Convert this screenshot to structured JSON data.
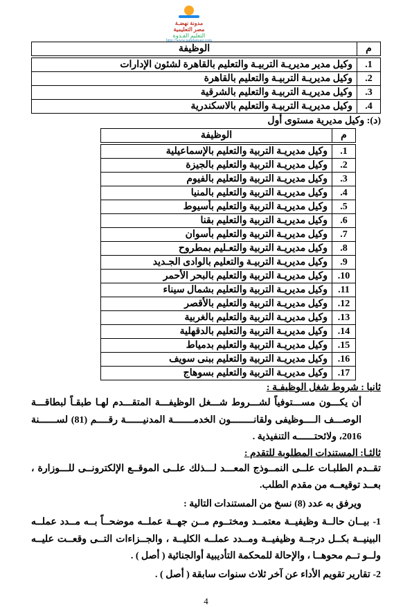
{
  "logo": {
    "line1": "مدونة نهضـة",
    "line2": "مصر التعليمية",
    "line3": "http://www.nahdamasr.com",
    "linebelow": "التعليم الفـدوة"
  },
  "table1": {
    "header_num": "م",
    "header_job": "الوظيفة",
    "rows": [
      {
        "n": ".1",
        "t": "وكيل مدير مديريـة التربيـة والتعليم بالقاهرة لشئون الإدارات"
      },
      {
        "n": ".2",
        "t": "وكيل مديريـة التربيـة والتعليم بالقاهرة"
      },
      {
        "n": ".3",
        "t": "وكيل مديريـة التربيـة والتعليم بالشرقية"
      },
      {
        "n": ".4",
        "t": "وكيل مديريـة التربيـة والتعليم بالاسكندرية"
      }
    ]
  },
  "section_d": "(د): وكيل مديرية مستوى أول",
  "table2": {
    "header_num": "م",
    "header_job": "الوظيفة",
    "rows": [
      {
        "n": ".1",
        "t": "وكيل مديريـة التربية والتعليم  بالإسماعيلية"
      },
      {
        "n": ".2",
        "t": "وكيل مديريـة التربية والتعليم بالجيزة"
      },
      {
        "n": ".3",
        "t": "وكيل مديريـة التربية والتعليم  بالفيوم"
      },
      {
        "n": ".4",
        "t": "وكيل مديريـة التربية والتعليم بالمنيا"
      },
      {
        "n": ".5",
        "t": "وكيل مديريـة التربية والتعليم بأسيوط"
      },
      {
        "n": ".6",
        "t": "وكيل مديريـة التربية والتعليم  بقنا"
      },
      {
        "n": ".7",
        "t": "وكيل مديريـة التربية والتعليم بأسوان"
      },
      {
        "n": ".8",
        "t": "وكيل مديريـة التربية والتعـليم بمطروح"
      },
      {
        "n": ".9",
        "t": "وكيل مديريـة التربيـة والتعليم بالوادى الجـديد"
      },
      {
        "n": ".10",
        "t": "وكيل مديريـة التربية والتعليم بالبحر الأحمر"
      },
      {
        "n": ".11",
        "t": "وكيل مديريـة التربية والتعليم بشمال سيناء"
      },
      {
        "n": ".12",
        "t": "وكيل مديريـة التربية والتعليم بالأقصر"
      },
      {
        "n": ".13",
        "t": "وكيل مديريـة التربية والتعليم بالغربية"
      },
      {
        "n": ".14",
        "t": "وكيل مديريـة التربية والتعليم بالدقهلية"
      },
      {
        "n": ".15",
        "t": "وكيل مديريـة التربية والتعليم بدمياط"
      },
      {
        "n": ".16",
        "t": "وكيل مديريـة التربية والتعليم ببنى سويف"
      },
      {
        "n": ".17",
        "t": "وكيل مديريـة التربية والتعليم بسوهاج"
      }
    ]
  },
  "sec2_title": "ثانيا : شروط شغل الوظيفـة :",
  "sec2_body": "أن يكـــون مســـتوفياً لشـــروط شـــغل الوظيفـــة المتقـــدم لهـا طبقـاً لبطاقـــة الوصـــف الــــوظيفى ولقانــــــــون الخدمـــــــة المدنيــــــة رقــــم (81) لســــــنة 2016، ولائحتــــــه التنفيذية .",
  "sec3_title": "ثالثـا: المستندات المطلوبة للتقدم :",
  "sec3_body": "تقــدم الطلبـات علــى النمــوذج المعـــد لـــذلك علــى الموقــع الإلكترونــى للـــوزارة ، بعــد توقيعــه من مقدم الطلب.",
  "sec3_attach": "ويرفق به عدد (8) نسخ من المستندات التالية :",
  "item1": "1- بيــان حالــة وظيفيــة معتمــد ومختــوم مــن جهــة عملــه موضحــاً بــه مــدد عملــه البينيــة بكــل درجــة وظيفيــة ومــدد عملــه الكليــة ، والجــزاءات التــى وقعــت عليــه ولــو تــم محوهــا ، والإحالة للمحكمة التأديبية أوالجنائية ( أصل ) .",
  "item2": "2- تقارير تقويم الأداء عن آخر ثلاث سنوات سابقة ( أصل ) .",
  "page_number": "4"
}
